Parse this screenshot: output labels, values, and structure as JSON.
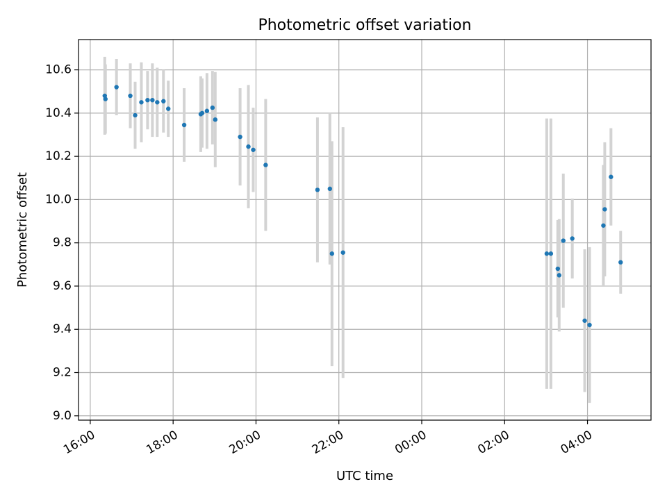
{
  "chart_data": {
    "type": "scatter",
    "title": "Photometric offset variation",
    "xlabel": "UTC time",
    "ylabel": "Photometric offset",
    "x_unit": "hours",
    "x_ticks": [
      "16:00",
      "18:00",
      "20:00",
      "22:00",
      "00:00",
      "02:00",
      "04:00"
    ],
    "y_ticks": [
      "9.0",
      "9.2",
      "9.4",
      "9.6",
      "9.8",
      "10.0",
      "10.2",
      "10.4",
      "10.6"
    ],
    "xlim": [
      "15:43",
      "05:32"
    ],
    "ylim": [
      8.98,
      10.74
    ],
    "grid": true,
    "marker_color": "#1f77b4",
    "errorbar_color": "#d3d3d3",
    "points": [
      {
        "x": "16:21",
        "y": 10.48,
        "err": 0.18
      },
      {
        "x": "16:22",
        "y": 10.465,
        "err": 0.16
      },
      {
        "x": "16:38",
        "y": 10.52,
        "err": 0.13
      },
      {
        "x": "16:58",
        "y": 10.48,
        "err": 0.15
      },
      {
        "x": "17:05",
        "y": 10.39,
        "err": 0.155
      },
      {
        "x": "17:14",
        "y": 10.45,
        "err": 0.185
      },
      {
        "x": "17:23",
        "y": 10.46,
        "err": 0.135
      },
      {
        "x": "17:30",
        "y": 10.46,
        "err": 0.17
      },
      {
        "x": "17:37",
        "y": 10.45,
        "err": 0.16
      },
      {
        "x": "17:46",
        "y": 10.455,
        "err": 0.145
      },
      {
        "x": "17:53",
        "y": 10.42,
        "err": 0.13
      },
      {
        "x": "18:16",
        "y": 10.345,
        "err": 0.17
      },
      {
        "x": "18:40",
        "y": 10.395,
        "err": 0.175
      },
      {
        "x": "18:42",
        "y": 10.4,
        "err": 0.16
      },
      {
        "x": "18:49",
        "y": 10.41,
        "err": 0.175
      },
      {
        "x": "18:57",
        "y": 10.425,
        "err": 0.17
      },
      {
        "x": "19:01",
        "y": 10.37,
        "err": 0.22
      },
      {
        "x": "19:37",
        "y": 10.29,
        "err": 0.225
      },
      {
        "x": "19:49",
        "y": 10.245,
        "err": 0.285
      },
      {
        "x": "19:56",
        "y": 10.23,
        "err": 0.195
      },
      {
        "x": "20:14",
        "y": 10.16,
        "err": 0.305
      },
      {
        "x": "21:29",
        "y": 10.045,
        "err": 0.335
      },
      {
        "x": "21:47",
        "y": 10.05,
        "err": 0.35
      },
      {
        "x": "21:50",
        "y": 9.75,
        "err": 0.52
      },
      {
        "x": "22:06",
        "y": 9.755,
        "err": 0.58
      },
      {
        "x": "03:01",
        "y": 9.75,
        "err": 0.625
      },
      {
        "x": "03:07",
        "y": 9.75,
        "err": 0.625
      },
      {
        "x": "03:17",
        "y": 9.68,
        "err": 0.225
      },
      {
        "x": "03:19",
        "y": 9.65,
        "err": 0.26
      },
      {
        "x": "03:25",
        "y": 9.81,
        "err": 0.31
      },
      {
        "x": "03:38",
        "y": 9.82,
        "err": 0.185
      },
      {
        "x": "03:56",
        "y": 9.44,
        "err": 0.33
      },
      {
        "x": "04:03",
        "y": 9.42,
        "err": 0.36
      },
      {
        "x": "04:23",
        "y": 9.88,
        "err": 0.28
      },
      {
        "x": "04:25",
        "y": 9.955,
        "err": 0.31
      },
      {
        "x": "04:34",
        "y": 10.105,
        "err": 0.225
      },
      {
        "x": "04:48",
        "y": 9.71,
        "err": 0.145
      }
    ]
  }
}
